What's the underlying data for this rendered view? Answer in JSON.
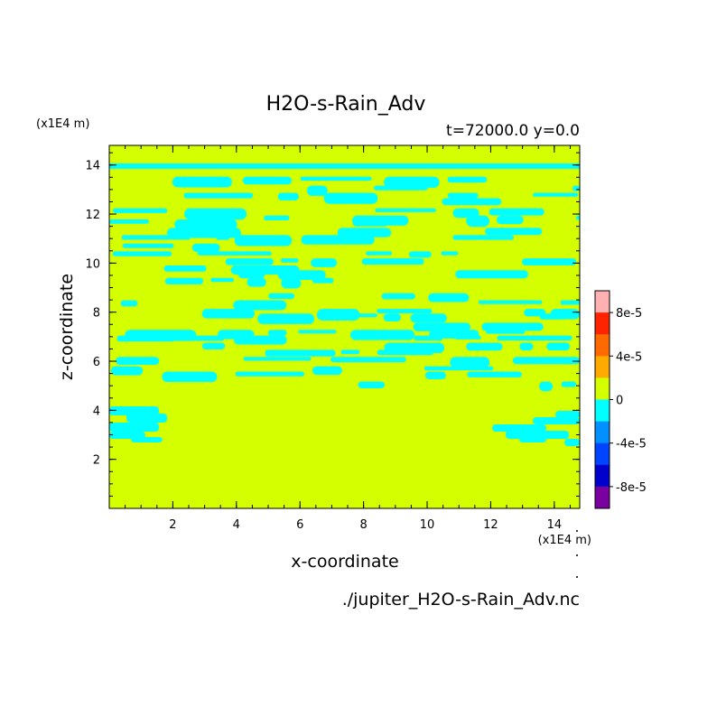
{
  "chart_data": {
    "type": "heatmap",
    "title": "H2O-s-Rain_Adv",
    "subtitle": "t=72000.0 y=0.0",
    "xlabel": "x-coordinate",
    "ylabel": "z-coordinate",
    "x_unit": "(x1E4 m)",
    "y_unit": "(x1E4 m)",
    "xlim": [
      0,
      14.8
    ],
    "ylim": [
      0,
      14.8
    ],
    "x_ticks": [
      2,
      4,
      6,
      8,
      10,
      12,
      14
    ],
    "y_ticks": [
      2,
      4,
      6,
      8,
      10,
      12,
      14
    ],
    "grid": false,
    "source_file": "./jupiter_H2O-s-Rain_Adv.nc",
    "background_level_color": "#d4ff00",
    "negative_level_color": "#00ffff",
    "colorbar": {
      "labels": [
        "8e-5",
        "4e-5",
        "0",
        "-4e-5",
        "-8e-5"
      ],
      "label_values": [
        8e-05,
        4e-05,
        0,
        -4e-05,
        -8e-05
      ],
      "colors": [
        "#ffb0b0",
        "#ff2400",
        "#ff6a00",
        "#ffaa00",
        "#d4ff00",
        "#00ffff",
        "#0090ff",
        "#0044ff",
        "#0000cc",
        "#7a00a0"
      ]
    }
  }
}
